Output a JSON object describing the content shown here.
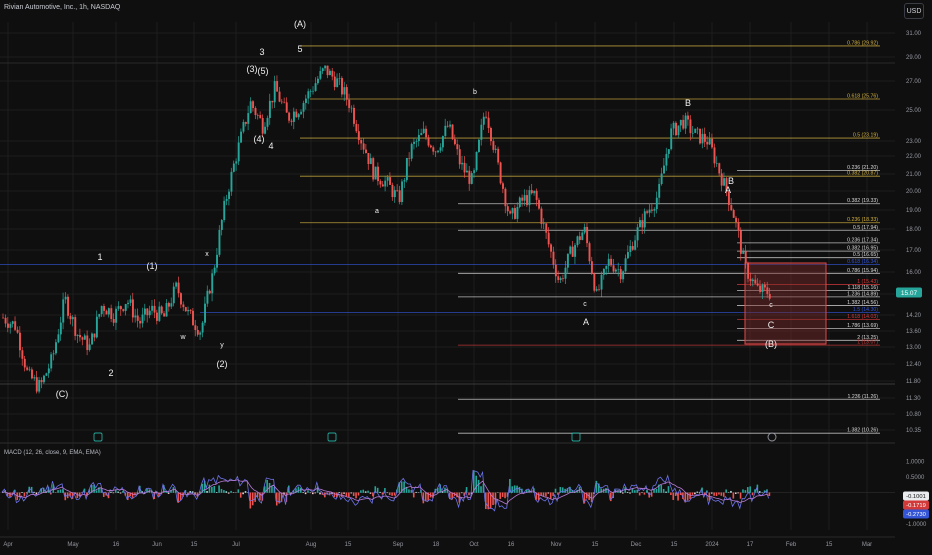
{
  "header": {
    "symbol": "Rivian Automotive, Inc., 1h, NASDAQ",
    "currency": "USD"
  },
  "colors": {
    "bg": "#0f0f0f",
    "grid": "#1e1e1e",
    "candle_up": "#26a69a",
    "candle_down": "#ef5350",
    "fib_yellow": "#d4b340",
    "fib_white": "#d8d8d8",
    "fib_blue": "#3355d6",
    "fib_red": "#d23a3a",
    "box": "#e04848",
    "box_fill": "#7a2b2b",
    "macd_line": "#6c73e8",
    "signal_line": "#b77ad6"
  },
  "chart_data": {
    "type": "candlestick",
    "title": "Rivian Automotive, Inc., 1h, NASDAQ",
    "x_axis_labels": [
      "Apr",
      "May",
      "16",
      "Jun",
      "15",
      "Jul",
      "Aug",
      "15",
      "Sep",
      "18",
      "Oct",
      "16",
      "Nov",
      "15",
      "Dec",
      "15",
      "2024",
      "17",
      "Feb",
      "15",
      "Mar"
    ],
    "y_axis_labels": [
      "31.00",
      "29.00",
      "27.00",
      "25.00",
      "23.00",
      "22.00",
      "21.00",
      "20.00",
      "19.00",
      "18.00",
      "17.00",
      "16.00",
      "15.00",
      "14.20",
      "13.60",
      "13.00",
      "12.40",
      "11.80",
      "11.30",
      "10.80",
      "10.35"
    ],
    "ylim": [
      9.9,
      32.2
    ],
    "last_price": "15.07",
    "price_path": [
      {
        "t": "Apr",
        "v": 14.1
      },
      {
        "t": "Apr",
        "v": 13.8
      },
      {
        "t": "May",
        "v": 12.0
      },
      {
        "t": "May",
        "v": 11.6
      },
      {
        "t": "May",
        "v": 12.6
      },
      {
        "t": "May",
        "v": 14.8
      },
      {
        "t": "16",
        "v": 13.5
      },
      {
        "t": "16",
        "v": 13.0
      },
      {
        "t": "16",
        "v": 14.6
      },
      {
        "t": "Jun",
        "v": 14.2
      },
      {
        "t": "Jun",
        "v": 14.8
      },
      {
        "t": "Jun",
        "v": 13.9
      },
      {
        "t": "Jun",
        "v": 14.4
      },
      {
        "t": "15",
        "v": 14.1
      },
      {
        "t": "15",
        "v": 15.3
      },
      {
        "t": "15",
        "v": 14.2
      },
      {
        "t": "15",
        "v": 13.6
      },
      {
        "t": "15",
        "v": 16.0
      },
      {
        "t": "15",
        "v": 19.5
      },
      {
        "t": "Jul",
        "v": 22.5
      },
      {
        "t": "Jul",
        "v": 25.5
      },
      {
        "t": "Jul",
        "v": 24.0
      },
      {
        "t": "Jul",
        "v": 26.5
      },
      {
        "t": "Jul",
        "v": 24.5
      },
      {
        "t": "Jul",
        "v": 25.2
      },
      {
        "t": "Jul",
        "v": 26.5
      },
      {
        "t": "Aug",
        "v": 28.0
      },
      {
        "t": "Aug",
        "v": 27.0
      },
      {
        "t": "Aug",
        "v": 25.5
      },
      {
        "t": "Aug",
        "v": 23.0
      },
      {
        "t": "15",
        "v": 21.0
      },
      {
        "t": "15",
        "v": 20.5
      },
      {
        "t": "15",
        "v": 19.5
      },
      {
        "t": "Sep",
        "v": 22.5
      },
      {
        "t": "Sep",
        "v": 23.5
      },
      {
        "t": "Sep",
        "v": 22.4
      },
      {
        "t": "18",
        "v": 24.0
      },
      {
        "t": "18",
        "v": 21.5
      },
      {
        "t": "18",
        "v": 20.5
      },
      {
        "t": "Oct",
        "v": 25.2
      },
      {
        "t": "Oct",
        "v": 21.5
      },
      {
        "t": "Oct",
        "v": 18.5
      },
      {
        "t": "16",
        "v": 19.5
      },
      {
        "t": "16",
        "v": 19.8
      },
      {
        "t": "16",
        "v": 17.5
      },
      {
        "t": "Nov",
        "v": 15.5
      },
      {
        "t": "Nov",
        "v": 17.0
      },
      {
        "t": "Nov",
        "v": 18.0
      },
      {
        "t": "15",
        "v": 14.9
      },
      {
        "t": "15",
        "v": 16.5
      },
      {
        "t": "15",
        "v": 16.0
      },
      {
        "t": "Dec",
        "v": 17.5
      },
      {
        "t": "Dec",
        "v": 18.8
      },
      {
        "t": "Dec",
        "v": 19.8
      },
      {
        "t": "15",
        "v": 23.5
      },
      {
        "t": "15",
        "v": 24.3
      },
      {
        "t": "15",
        "v": 23.4
      },
      {
        "t": "2024",
        "v": 23.0
      },
      {
        "t": "2024",
        "v": 21.0
      },
      {
        "t": "2024",
        "v": 19.0
      },
      {
        "t": "17",
        "v": 16.2
      },
      {
        "t": "17",
        "v": 15.2
      },
      {
        "t": "17",
        "v": 15.07
      }
    ],
    "fib_levels": [
      {
        "label": "0.786 (29.92)",
        "value": 29.92,
        "color": "yellow"
      },
      {
        "label": "0.618 (25.76)",
        "value": 25.76,
        "color": "yellow"
      },
      {
        "label": "0.5 (23.19)",
        "value": 23.19,
        "color": "yellow"
      },
      {
        "label": "0.236 (21.20)",
        "value": 21.2,
        "color": "white"
      },
      {
        "label": "0.382 (20.87)",
        "value": 20.87,
        "color": "yellow"
      },
      {
        "label": "0.382 (19.33)",
        "value": 19.33,
        "color": "white"
      },
      {
        "label": "0.236 (18.33)",
        "value": 18.33,
        "color": "yellow"
      },
      {
        "label": "0.5 (17.94)",
        "value": 17.94,
        "color": "white"
      },
      {
        "label": "0.236 (17.34)",
        "value": 17.34,
        "color": "white"
      },
      {
        "label": "0.382 (16.95)",
        "value": 16.95,
        "color": "white"
      },
      {
        "label": "0.5 (16.65)",
        "value": 16.65,
        "color": "white"
      },
      {
        "label": "0.618 (16.34)",
        "value": 16.34,
        "color": "blue"
      },
      {
        "label": "0.786 (15.94)",
        "value": 15.94,
        "color": "white"
      },
      {
        "label": "1 (15.43)",
        "value": 15.43,
        "color": "red"
      },
      {
        "label": "1.118 (15.16)",
        "value": 15.16,
        "color": "white"
      },
      {
        "label": "1.236 (14.89)",
        "value": 14.89,
        "color": "white"
      },
      {
        "label": "1.382 (14.56)",
        "value": 14.56,
        "color": "white"
      },
      {
        "label": "1.5 (14.30)",
        "value": 14.3,
        "color": "blue"
      },
      {
        "label": "1.618 (14.03)",
        "value": 14.03,
        "color": "red"
      },
      {
        "label": "1.786 (13.69)",
        "value": 13.69,
        "color": "white"
      },
      {
        "label": "2 (13.25)",
        "value": 13.25,
        "color": "white"
      },
      {
        "label": "1 (13.07)",
        "value": 13.07,
        "color": "red"
      },
      {
        "label": "1.236 (11.26)",
        "value": 11.26,
        "color": "white"
      },
      {
        "label": "1.382 (10.26)",
        "value": 10.26,
        "color": "white"
      }
    ],
    "wave_labels": [
      {
        "text": "(A)",
        "t": "Aug",
        "v": 32.0
      },
      {
        "text": "3",
        "t": "Jul",
        "v": 30.6
      },
      {
        "text": "5",
        "t": "Aug",
        "v": 30.8
      },
      {
        "text": "(3)",
        "t": "Jul",
        "v": 28.6
      },
      {
        "text": "(5)",
        "t": "Jul",
        "v": 28.4
      },
      {
        "text": "(4)",
        "t": "Jul",
        "v": 22.6
      },
      {
        "text": "4",
        "t": "Jul",
        "v": 22.0
      },
      {
        "text": "b",
        "t": "Oct",
        "v": 25.6
      },
      {
        "text": "B",
        "t": "15",
        "v": 25.2
      },
      {
        "text": "a",
        "t": "15",
        "v": 18.9
      },
      {
        "text": "B",
        "t": "2024",
        "v": 20.2
      },
      {
        "text": "A",
        "t": "2024",
        "v": 19.1
      },
      {
        "text": "1",
        "t": "May",
        "v": 16.4
      },
      {
        "text": "(1)",
        "t": "Jun",
        "v": 15.8
      },
      {
        "text": "x",
        "t": "15",
        "v": 16.6
      },
      {
        "text": "w",
        "t": "Jun",
        "v": 13.1
      },
      {
        "text": "y",
        "t": "15",
        "v": 12.9
      },
      {
        "text": "(2)",
        "t": "15",
        "v": 12.2
      },
      {
        "text": "2",
        "t": "May",
        "v": 12.0
      },
      {
        "text": "(C)",
        "t": "Apr",
        "v": 11.2
      },
      {
        "text": "c",
        "t": "15",
        "v": 14.4
      },
      {
        "text": "A",
        "t": "15",
        "v": 13.75
      },
      {
        "text": "c",
        "t": "17",
        "v": 14.75
      },
      {
        "text": "C",
        "t": "17",
        "v": 13.5
      },
      {
        "text": "(B)",
        "t": "17",
        "v": 12.75
      }
    ],
    "macd": {
      "label": "MACD (12, 26, close, 9, EMA, EMA)",
      "axis_labels": [
        "1.0000",
        "0.5000",
        "-0.5000",
        "-1.0000"
      ],
      "values": [
        {
          "label": "-0.1001",
          "value": -0.1001,
          "color": "#e9ebee"
        },
        {
          "label": "-0.1719",
          "value": -0.1719,
          "color": "#d23a3a"
        },
        {
          "label": "-0.2730",
          "value": -0.273,
          "color": "#3355d6"
        }
      ],
      "ylim": [
        -1.2,
        1.2
      ]
    }
  }
}
